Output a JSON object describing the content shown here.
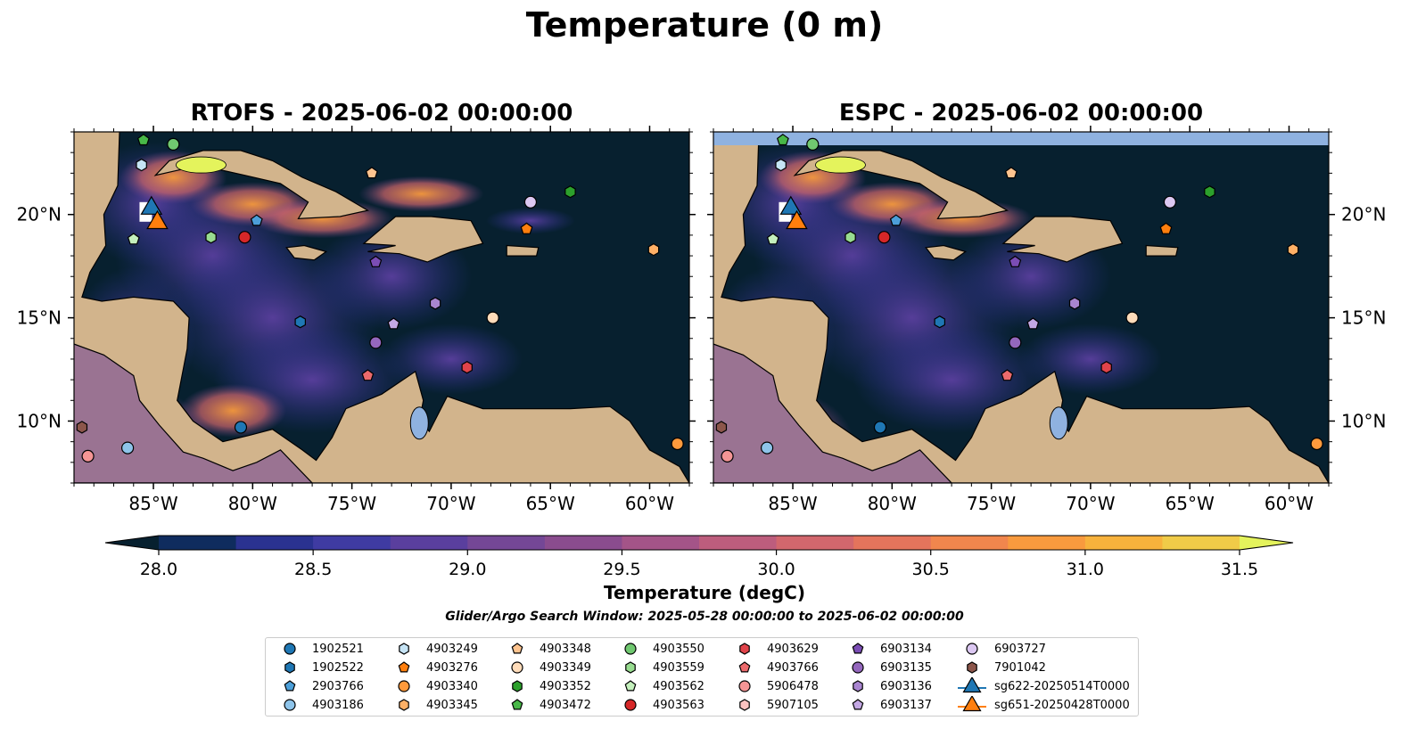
{
  "figure": {
    "suptitle": "Temperature (0 m)",
    "search_window": "Glider/Argo Search Window: 2025-05-28 00:00:00 to 2025-06-02 00:00:00"
  },
  "chart_data": [
    {
      "type": "heatmap",
      "title": "RTOFS - 2025-06-02 00:00:00",
      "xlabel": "",
      "ylabel": "",
      "xlim": [
        -89,
        -58
      ],
      "ylim": [
        7,
        24
      ],
      "xticks": [
        "85°W",
        "80°W",
        "75°W",
        "70°W",
        "65°W",
        "60°W"
      ],
      "yticks": [
        "10°N",
        "15°N",
        "20°N"
      ],
      "variable": "Temperature (degC)"
    },
    {
      "type": "heatmap",
      "title": "ESPC - 2025-06-02 00:00:00",
      "xlabel": "",
      "ylabel": "",
      "xlim": [
        -89,
        -58
      ],
      "ylim": [
        7,
        24
      ],
      "xticks": [
        "85°W",
        "80°W",
        "75°W",
        "70°W",
        "65°W",
        "60°W"
      ],
      "yticks": [
        "10°N",
        "15°N",
        "20°N"
      ],
      "variable": "Temperature (degC)"
    }
  ],
  "colorbar": {
    "label": "Temperature (degC)",
    "min": 28.0,
    "max": 31.5,
    "ticks": [
      "28.0",
      "28.5",
      "29.0",
      "29.5",
      "30.0",
      "30.5",
      "31.0",
      "31.5"
    ],
    "colors": [
      "#07202f",
      "#0f2c5e",
      "#2a3290",
      "#3f3ba2",
      "#5a3f9e",
      "#744796",
      "#8a4c8e",
      "#a45488",
      "#bd5d7d",
      "#d2676d",
      "#e4745c",
      "#f1864d",
      "#f89a3e",
      "#f7b23c",
      "#f0cb48",
      "#e4f35c"
    ]
  },
  "legend": [
    {
      "id": "1902521",
      "marker": "circle",
      "color": "#1f77b4"
    },
    {
      "id": "1902522",
      "marker": "hexagon",
      "color": "#1f77b4"
    },
    {
      "id": "2903766",
      "marker": "pentagon",
      "color": "#4c9fd9"
    },
    {
      "id": "4903186",
      "marker": "circle",
      "color": "#8ec4ea"
    },
    {
      "id": "4903249",
      "marker": "hexagon",
      "color": "#c6e4f5"
    },
    {
      "id": "4903276",
      "marker": "pentagon",
      "color": "#ff7f0e"
    },
    {
      "id": "4903340",
      "marker": "circle",
      "color": "#ff9a3c"
    },
    {
      "id": "4903345",
      "marker": "hexagon",
      "color": "#ffb066"
    },
    {
      "id": "4903348",
      "marker": "pentagon",
      "color": "#ffc48f"
    },
    {
      "id": "4903349",
      "marker": "circle",
      "color": "#ffdcba"
    },
    {
      "id": "4903352",
      "marker": "hexagon",
      "color": "#2ca02c"
    },
    {
      "id": "4903472",
      "marker": "pentagon",
      "color": "#48b848"
    },
    {
      "id": "4903550",
      "marker": "circle",
      "color": "#70c870"
    },
    {
      "id": "4903559",
      "marker": "hexagon",
      "color": "#98dc90"
    },
    {
      "id": "4903562",
      "marker": "pentagon",
      "color": "#c4f0bc"
    },
    {
      "id": "4903563",
      "marker": "circle",
      "color": "#d62728"
    },
    {
      "id": "4903629",
      "marker": "hexagon",
      "color": "#e0434a"
    },
    {
      "id": "4903766",
      "marker": "pentagon",
      "color": "#ec6a6c"
    },
    {
      "id": "5906478",
      "marker": "circle",
      "color": "#f59595"
    },
    {
      "id": "5907105",
      "marker": "hexagon",
      "color": "#fbc2c0"
    },
    {
      "id": "6903134",
      "marker": "pentagon",
      "color": "#7b4db5"
    },
    {
      "id": "6903135",
      "marker": "circle",
      "color": "#9467bd"
    },
    {
      "id": "6903136",
      "marker": "hexagon",
      "color": "#a985d0"
    },
    {
      "id": "6903137",
      "marker": "pentagon",
      "color": "#c4a8e4"
    },
    {
      "id": "6903727",
      "marker": "circle",
      "color": "#dcc8f2"
    },
    {
      "id": "7901042",
      "marker": "hexagon",
      "color": "#8c564b"
    },
    {
      "id": "sg622-20250514T0000",
      "marker": "triangle",
      "color": "#1f77b4"
    },
    {
      "id": "sg651-20250428T0000",
      "marker": "triangle",
      "color": "#ff7f0e"
    }
  ],
  "floats": [
    {
      "id": "4903472",
      "lon": -85.5,
      "lat": 23.6
    },
    {
      "id": "4903550",
      "lon": -84.0,
      "lat": 23.4
    },
    {
      "id": "4903249",
      "lon": -85.6,
      "lat": 22.4
    },
    {
      "id": "4903348",
      "lon": -74.0,
      "lat": 22.0
    },
    {
      "id": "4903352",
      "lon": -64.0,
      "lat": 21.1
    },
    {
      "id": "6903727",
      "lon": -66.0,
      "lat": 20.6
    },
    {
      "id": "2903766",
      "lon": -79.8,
      "lat": 19.7
    },
    {
      "id": "4903276",
      "lon": -66.2,
      "lat": 19.3
    },
    {
      "id": "4903559",
      "lon": -82.1,
      "lat": 18.9
    },
    {
      "id": "4903563",
      "lon": -80.4,
      "lat": 18.9
    },
    {
      "id": "4903562",
      "lon": -86.0,
      "lat": 18.8
    },
    {
      "id": "4903345",
      "lon": -59.8,
      "lat": 18.3
    },
    {
      "id": "6903134",
      "lon": -73.8,
      "lat": 17.7
    },
    {
      "id": "6903136",
      "lon": -70.8,
      "lat": 15.7
    },
    {
      "id": "4903349",
      "lon": -67.9,
      "lat": 15.0
    },
    {
      "id": "1902522",
      "lon": -77.6,
      "lat": 14.8
    },
    {
      "id": "6903137",
      "lon": -72.9,
      "lat": 14.7
    },
    {
      "id": "6903135",
      "lon": -73.8,
      "lat": 13.8
    },
    {
      "id": "4903629",
      "lon": -69.2,
      "lat": 12.6
    },
    {
      "id": "4903766",
      "lon": -74.2,
      "lat": 12.2
    },
    {
      "id": "1902521",
      "lon": -80.6,
      "lat": 9.7
    },
    {
      "id": "7901042",
      "lon": -88.6,
      "lat": 9.7
    },
    {
      "id": "4903186",
      "lon": -86.3,
      "lat": 8.7
    },
    {
      "id": "5906478",
      "lon": -88.3,
      "lat": 8.3
    },
    {
      "id": "4903340",
      "lon": -58.6,
      "lat": 8.9
    }
  ],
  "gliders": [
    {
      "id": "sg622-20250514T0000",
      "lon": -85.1,
      "lat": 20.3
    },
    {
      "id": "sg651-20250428T0000",
      "lon": -84.8,
      "lat": 19.6
    }
  ]
}
